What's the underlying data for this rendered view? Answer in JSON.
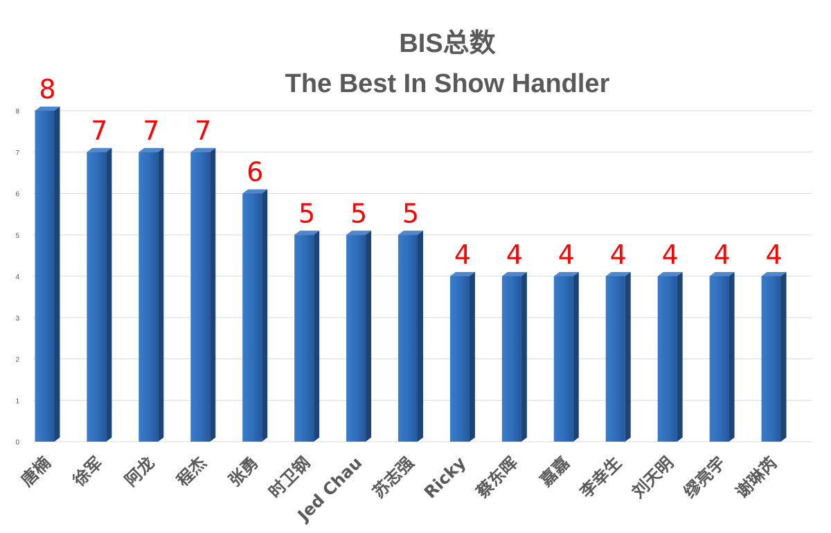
{
  "chart_data": {
    "type": "bar",
    "title": "BIS总数",
    "subtitle": "The Best In Show Handler",
    "xlabel": "",
    "ylabel": "",
    "categories": [
      "唐楠",
      "徐军",
      "阿龙",
      "程杰",
      "张勇",
      "时卫钢",
      "Jed Chau",
      "苏志强",
      "Ricky",
      "蔡东晖",
      "嘉嘉",
      "李幸生",
      "刘天明",
      "缪亮宇",
      "谢琳芮"
    ],
    "series": [
      {
        "values": [
          8,
          7,
          7,
          7,
          6,
          5,
          5,
          5,
          4,
          4,
          4,
          4,
          4,
          4,
          4
        ]
      }
    ],
    "ylim": [
      0,
      8
    ],
    "yticks": [
      0,
      1,
      2,
      3,
      4,
      5,
      6,
      7,
      8
    ],
    "grid": true,
    "legend": "none",
    "data_labels": true,
    "colors": {
      "bar_front": "#2e6bb8",
      "bar_side": "#1d4478",
      "bar_top": "#4f86cc",
      "value_label": "#ff0000",
      "text": "#595959",
      "grid": "#d9d9d9"
    }
  }
}
